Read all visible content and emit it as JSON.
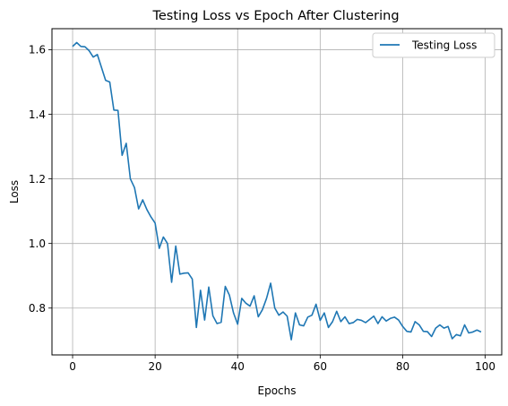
{
  "chart_data": {
    "type": "line",
    "title": "Testing Loss vs Epoch After Clustering",
    "xlabel": "Epochs",
    "ylabel": "Loss",
    "xlim": [
      -5,
      104
    ],
    "ylim": [
      0.655,
      1.665
    ],
    "xticks": [
      0,
      20,
      40,
      60,
      80,
      100
    ],
    "xtick_labels": [
      "0",
      "20",
      "40",
      "60",
      "80",
      "100"
    ],
    "yticks": [
      0.8,
      1.0,
      1.2,
      1.4,
      1.6
    ],
    "ytick_labels": [
      "0.8",
      "1.0",
      "1.2",
      "1.4",
      "1.6"
    ],
    "grid": true,
    "legend_position": "top-right",
    "series": [
      {
        "name": "Testing Loss",
        "color": "#1f77b4",
        "x": [
          0,
          1,
          2,
          3,
          4,
          5,
          6,
          7,
          8,
          9,
          10,
          11,
          12,
          13,
          14,
          15,
          16,
          17,
          18,
          19,
          20,
          21,
          22,
          23,
          24,
          25,
          26,
          27,
          28,
          29,
          30,
          31,
          32,
          33,
          34,
          35,
          36,
          37,
          38,
          39,
          40,
          41,
          42,
          43,
          44,
          45,
          46,
          47,
          48,
          49,
          50,
          51,
          52,
          53,
          54,
          55,
          56,
          57,
          58,
          59,
          60,
          61,
          62,
          63,
          64,
          65,
          66,
          67,
          68,
          69,
          70,
          71,
          72,
          73,
          74,
          75,
          76,
          77,
          78,
          79,
          80,
          81,
          82,
          83,
          84,
          85,
          86,
          87,
          88,
          89,
          90,
          91,
          92,
          93,
          94,
          95,
          96,
          97,
          98,
          99
        ],
        "values": [
          1.61,
          1.622,
          1.61,
          1.609,
          1.597,
          1.577,
          1.585,
          1.545,
          1.505,
          1.5,
          1.413,
          1.412,
          1.273,
          1.31,
          1.2,
          1.173,
          1.107,
          1.135,
          1.105,
          1.082,
          1.063,
          0.985,
          1.02,
          1.0,
          0.88,
          0.992,
          0.905,
          0.908,
          0.909,
          0.89,
          0.74,
          0.855,
          0.763,
          0.865,
          0.776,
          0.752,
          0.756,
          0.867,
          0.84,
          0.785,
          0.75,
          0.83,
          0.815,
          0.806,
          0.838,
          0.773,
          0.795,
          0.83,
          0.877,
          0.8,
          0.778,
          0.788,
          0.775,
          0.702,
          0.785,
          0.748,
          0.745,
          0.772,
          0.778,
          0.812,
          0.762,
          0.785,
          0.74,
          0.758,
          0.79,
          0.758,
          0.773,
          0.752,
          0.755,
          0.765,
          0.762,
          0.755,
          0.765,
          0.775,
          0.752,
          0.773,
          0.76,
          0.768,
          0.772,
          0.763,
          0.743,
          0.728,
          0.726,
          0.758,
          0.748,
          0.728,
          0.727,
          0.712,
          0.738,
          0.748,
          0.738,
          0.743,
          0.705,
          0.718,
          0.714,
          0.748,
          0.723,
          0.726,
          0.732,
          0.726
        ]
      }
    ]
  }
}
